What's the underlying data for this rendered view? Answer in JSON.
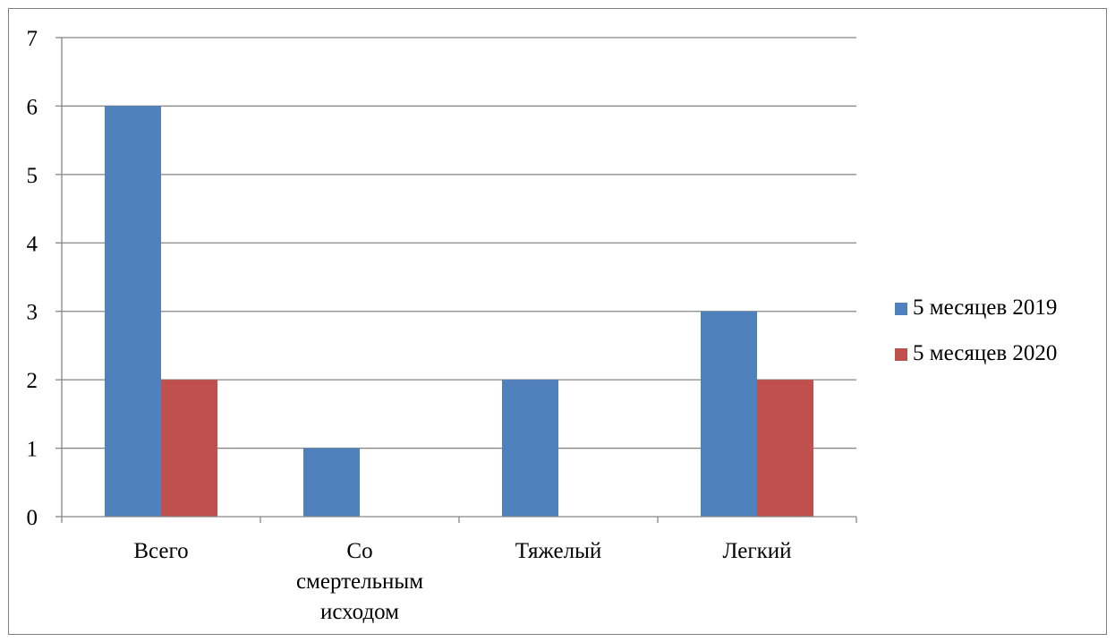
{
  "chart_data": {
    "type": "bar",
    "title": "",
    "xlabel": "",
    "ylabel": "",
    "ylim": [
      0,
      7
    ],
    "yticks": [
      0,
      1,
      2,
      3,
      4,
      5,
      6,
      7
    ],
    "grid": true,
    "legend_position": "right",
    "categories": [
      [
        "Всего"
      ],
      [
        "Со",
        "смертельным",
        "исходом"
      ],
      [
        "Тяжелый"
      ],
      [
        "Легкий"
      ]
    ],
    "series": [
      {
        "name": "5 месяцев 2019",
        "color": "#4f81bd",
        "values": [
          6,
          1,
          2,
          3
        ]
      },
      {
        "name": "5 месяцев 2020",
        "color": "#c0504d",
        "values": [
          2,
          0,
          0,
          2
        ]
      }
    ]
  }
}
